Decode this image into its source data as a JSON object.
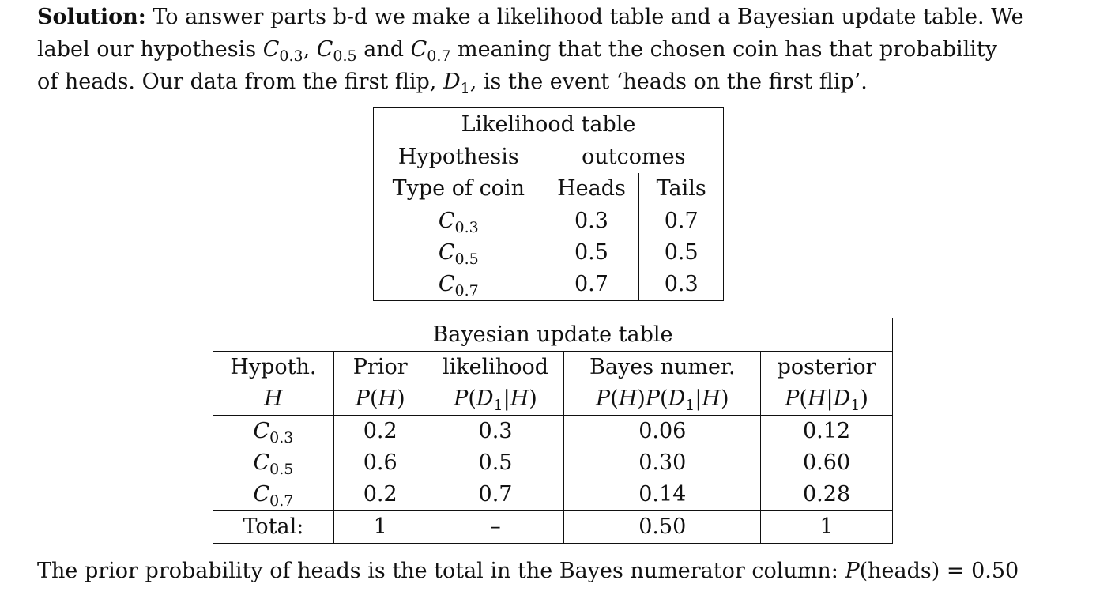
{
  "intro": {
    "solution_label": "Solution:",
    "line1_rest": " To answer parts b-d we make a likelihood table and a Bayesian update table. We",
    "line2_a": "label our hypothesis ",
    "line2_C": "C",
    "h1": "0.3",
    "line2_sep1": ", ",
    "h2": "0.5",
    "line2_and": " and ",
    "h3": "0.7",
    "line2_b": " meaning that the chosen coin has that probability",
    "line3_a": "of heads. Our data from the first flip, ",
    "line3_D": "D",
    "line3_sub": "1",
    "line3_b": ", is the event ‘heads on the first flip’."
  },
  "likelihood_table": {
    "title": "Likelihood table",
    "hyp_header_1": "Hypothesis",
    "hyp_header_2": "Type of coin",
    "outcomes_header": "outcomes",
    "heads_header": "Heads",
    "tails_header": "Tails",
    "rows": [
      {
        "coin_sub": "0.3",
        "heads": "0.3",
        "tails": "0.7"
      },
      {
        "coin_sub": "0.5",
        "heads": "0.5",
        "tails": "0.5"
      },
      {
        "coin_sub": "0.7",
        "heads": "0.7",
        "tails": "0.3"
      }
    ]
  },
  "bayes_table": {
    "title": "Bayesian update table",
    "col_hyp_1": "Hypoth.",
    "col_hyp_2": "H",
    "col_prior_1": "Prior",
    "col_prior_2_a": "P",
    "col_prior_2_b": "(",
    "col_prior_2_c": "H",
    "col_prior_2_d": ")",
    "col_like_1": "likelihood",
    "col_like_2": "P(D1|H)",
    "col_numer_1": "Bayes numer.",
    "col_numer_2": "P(H)P(D1|H)",
    "col_post_1": "posterior",
    "col_post_2": "P(H|D1)",
    "rows": [
      {
        "coin_sub": "0.3",
        "prior": "0.2",
        "likelihood": "0.3",
        "numer": "0.06",
        "posterior": "0.12"
      },
      {
        "coin_sub": "0.5",
        "prior": "0.6",
        "likelihood": "0.5",
        "numer": "0.30",
        "posterior": "0.60"
      },
      {
        "coin_sub": "0.7",
        "prior": "0.2",
        "likelihood": "0.7",
        "numer": "0.14",
        "posterior": "0.28"
      }
    ],
    "total_label": "Total:",
    "total_prior": "1",
    "total_likelihood": "–",
    "total_numer": "0.50",
    "total_posterior": "1"
  },
  "footer": {
    "text_a": "The prior probability of heads is the total in the Bayes numerator column: ",
    "text_P": "P",
    "text_b": "(heads) = 0.50"
  }
}
